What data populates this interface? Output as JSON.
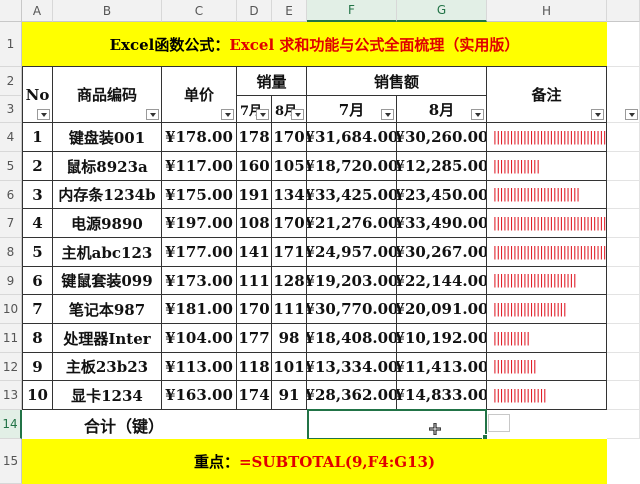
{
  "columns": [
    "A",
    "B",
    "C",
    "D",
    "E",
    "F",
    "G",
    "H"
  ],
  "rows": [
    "1",
    "2",
    "3",
    "4",
    "5",
    "6",
    "7",
    "8",
    "9",
    "10",
    "11",
    "12",
    "13",
    "14",
    "15"
  ],
  "title": {
    "black": "Excel函数公式：",
    "red": "Excel 求和功能与公式全面梳理（实用版）"
  },
  "headers": {
    "no": "No",
    "code": "商品编码",
    "price": "单价",
    "qty": "销量",
    "sales": "销售额",
    "note": "备注",
    "jul": "7月",
    "aug": "8月",
    "sjul": "7月",
    "saug": "8月"
  },
  "table": [
    {
      "no": "1",
      "code": "键盘装001",
      "price": "¥178.00",
      "q7": "178",
      "q8": "170",
      "s7": "¥31,684.00",
      "s8": "¥30,260.00",
      "bar": "||||||||||||||||||||||||||||||||||"
    },
    {
      "no": "2",
      "code": "鼠标8923a",
      "price": "¥117.00",
      "q7": "160",
      "q8": "105",
      "s7": "¥18,720.00",
      "s8": "¥12,285.00",
      "bar": "||||||||||||||"
    },
    {
      "no": "3",
      "code": "内存条1234b",
      "price": "¥175.00",
      "q7": "191",
      "q8": "134",
      "s7": "¥33,425.00",
      "s8": "¥23,450.00",
      "bar": "||||||||||||||||||||||||||"
    },
    {
      "no": "4",
      "code": "电源9890",
      "price": "¥197.00",
      "q7": "108",
      "q8": "170",
      "s7": "¥21,276.00",
      "s8": "¥33,490.00",
      "bar": "||||||||||||||||||||||||||||||||||||||"
    },
    {
      "no": "5",
      "code": "主机abc123",
      "price": "¥177.00",
      "q7": "141",
      "q8": "171",
      "s7": "¥24,957.00",
      "s8": "¥30,267.00",
      "bar": "||||||||||||||||||||||||||||||||||"
    },
    {
      "no": "6",
      "code": "键鼠套装099",
      "price": "¥173.00",
      "q7": "111",
      "q8": "128",
      "s7": "¥19,203.00",
      "s8": "¥22,144.00",
      "bar": "|||||||||||||||||||||||||"
    },
    {
      "no": "7",
      "code": "笔记本987",
      "price": "¥181.00",
      "q7": "170",
      "q8": "111",
      "s7": "¥30,770.00",
      "s8": "¥20,091.00",
      "bar": "||||||||||||||||||||||"
    },
    {
      "no": "8",
      "code": "处理器Inter",
      "price": "¥104.00",
      "q7": "177",
      "q8": "98",
      "s7": "¥18,408.00",
      "s8": "¥10,192.00",
      "bar": "|||||||||||"
    },
    {
      "no": "9",
      "code": "主板23b23",
      "price": "¥113.00",
      "q7": "118",
      "q8": "101",
      "s7": "¥13,334.00",
      "s8": "¥11,413.00",
      "bar": "|||||||||||||"
    },
    {
      "no": "10",
      "code": "显卡1234",
      "price": "¥163.00",
      "q7": "174",
      "q8": "91",
      "s7": "¥28,362.00",
      "s8": "¥14,833.00",
      "bar": "||||||||||||||||"
    }
  ],
  "total_label": "合计（键）",
  "footer": {
    "label": "重点：",
    "formula": "=SUBTOTAL(9,F4:G13)"
  },
  "colors": {
    "yellow": "#ffff00",
    "red": "#e00000",
    "bar": "#e0202a",
    "selection": "#217346"
  }
}
